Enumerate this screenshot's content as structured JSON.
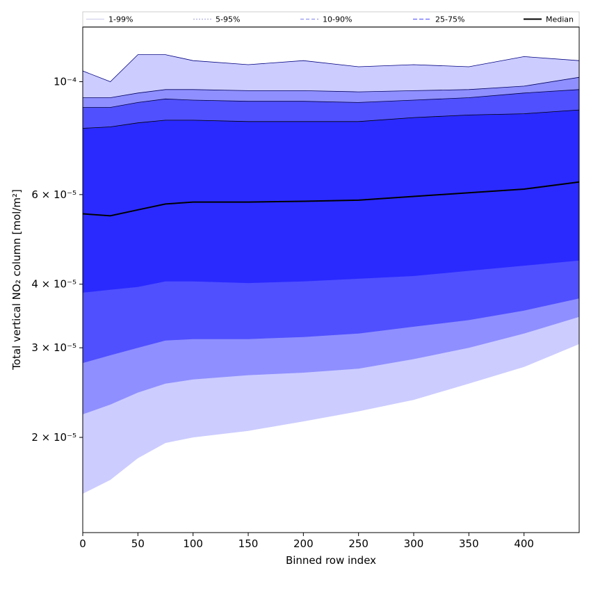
{
  "chart_data": {
    "type": "area",
    "xlabel": "Binned row index",
    "ylabel": "Total vertical NO₂ column [mol/m²]",
    "xlim": [
      0,
      450
    ],
    "ylim": [
      1.3e-05,
      0.000128
    ],
    "yscale": "log",
    "grid": false,
    "legend": {
      "placement": "top",
      "ncol": 5
    },
    "x_ticks": [
      {
        "value": 0,
        "label": "0"
      },
      {
        "value": 50,
        "label": "50"
      },
      {
        "value": 100,
        "label": "100"
      },
      {
        "value": 150,
        "label": "150"
      },
      {
        "value": 200,
        "label": "200"
      },
      {
        "value": 250,
        "label": "250"
      },
      {
        "value": 300,
        "label": "300"
      },
      {
        "value": 350,
        "label": "350"
      },
      {
        "value": 400,
        "label": "400"
      }
    ],
    "y_ticks": [
      {
        "value": 2e-05,
        "label": "2 × 10⁻⁵"
      },
      {
        "value": 3e-05,
        "label": "3 × 10⁻⁵"
      },
      {
        "value": 4e-05,
        "label": "4 × 10⁻⁵"
      },
      {
        "value": 6e-05,
        "label": "6 × 10⁻⁵"
      },
      {
        "value": 0.0001,
        "label": "10⁻⁴"
      }
    ],
    "x": [
      0,
      25,
      50,
      75,
      100,
      150,
      200,
      250,
      300,
      350,
      400,
      450
    ],
    "series": [
      {
        "name": "1-99%",
        "fill": "#ccccff",
        "line": "#000080",
        "upper": [
          0.000105,
          0.0001,
          0.000113,
          0.000113,
          0.00011,
          0.000108,
          0.00011,
          0.000107,
          0.000108,
          0.000107,
          0.000112,
          0.00011
        ],
        "lower": [
          1.55e-05,
          1.65e-05,
          1.82e-05,
          1.95e-05,
          2e-05,
          2.06e-05,
          2.15e-05,
          2.25e-05,
          2.37e-05,
          2.55e-05,
          2.75e-05,
          3.05e-05
        ]
      },
      {
        "name": "5-95%",
        "fill": "#8f8fff",
        "line": "#000060",
        "upper": [
          9.3e-05,
          9.3e-05,
          9.5e-05,
          9.65e-05,
          9.65e-05,
          9.6e-05,
          9.6e-05,
          9.55e-05,
          9.6e-05,
          9.65e-05,
          9.8e-05,
          0.000102
        ],
        "lower": [
          2.22e-05,
          2.32e-05,
          2.45e-05,
          2.55e-05,
          2.6e-05,
          2.65e-05,
          2.68e-05,
          2.73e-05,
          2.85e-05,
          3e-05,
          3.2e-05,
          3.45e-05
        ]
      },
      {
        "name": "10-90%",
        "fill": "#5050ff",
        "line": "#000040",
        "upper": [
          8.9e-05,
          8.9e-05,
          9.1e-05,
          9.25e-05,
          9.2e-05,
          9.15e-05,
          9.15e-05,
          9.1e-05,
          9.2e-05,
          9.3e-05,
          9.5e-05,
          9.65e-05
        ],
        "lower": [
          2.8e-05,
          2.9e-05,
          3e-05,
          3.1e-05,
          3.12e-05,
          3.12e-05,
          3.15e-05,
          3.2e-05,
          3.3e-05,
          3.4e-05,
          3.55e-05,
          3.75e-05
        ]
      },
      {
        "name": "25-75%",
        "fill": "#2a2aff",
        "line": "#000000",
        "upper": [
          8.1e-05,
          8.15e-05,
          8.3e-05,
          8.4e-05,
          8.4e-05,
          8.35e-05,
          8.35e-05,
          8.35e-05,
          8.5e-05,
          8.6e-05,
          8.65e-05,
          8.8e-05
        ],
        "lower": [
          3.85e-05,
          3.9e-05,
          3.95e-05,
          4.05e-05,
          4.05e-05,
          4.02e-05,
          4.05e-05,
          4.1e-05,
          4.15e-05,
          4.25e-05,
          4.35e-05,
          4.45e-05
        ]
      }
    ],
    "median": {
      "name": "Median",
      "line": "#000000",
      "values": [
        5.5e-05,
        5.45e-05,
        5.6e-05,
        5.75e-05,
        5.8e-05,
        5.8e-05,
        5.82e-05,
        5.85e-05,
        5.95e-05,
        6.05e-05,
        6.15e-05,
        6.35e-05
      ]
    }
  }
}
